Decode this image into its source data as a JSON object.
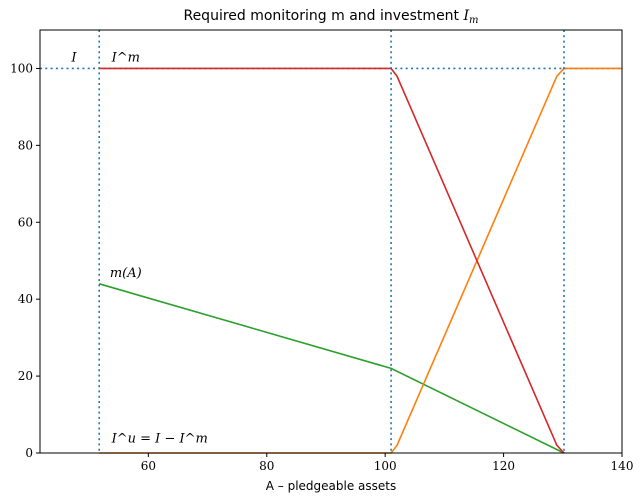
{
  "chart_data": {
    "type": "line",
    "title": "Required monitoring m and investment I_m",
    "xlabel": "A – pledgeable assets",
    "ylabel": "",
    "xlim": [
      41.7,
      140
    ],
    "ylim": [
      0,
      110
    ],
    "grid": false,
    "xticks": [
      60,
      80,
      100,
      120,
      140
    ],
    "yticks": [
      0,
      20,
      40,
      60,
      80,
      100
    ],
    "series": [
      {
        "color": "#2ca02c",
        "x": [
          51.7,
          101,
          130.2
        ],
        "y": [
          44,
          22,
          0
        ]
      },
      {
        "color": "#ff7f0e",
        "x": [
          51.7,
          101,
          102,
          129,
          130.2,
          140
        ],
        "y": [
          0,
          0,
          2,
          98,
          100,
          100
        ]
      },
      {
        "color": "#d62728",
        "x": [
          51.7,
          101,
          102,
          129,
          130.2
        ],
        "y": [
          100,
          100,
          98,
          2,
          0
        ]
      }
    ],
    "reference_lines": {
      "color": "#1f77b4",
      "vertical": [
        51.7,
        101,
        130.2
      ],
      "horizontal": [
        100
      ]
    },
    "annotations": [
      {
        "text": "I",
        "x": 47,
        "y": 101
      },
      {
        "text": "I^m",
        "x": 53.8,
        "y": 101
      },
      {
        "text": "m(A)",
        "x": 53.5,
        "y": 45
      },
      {
        "text": "I^u = I − I^m",
        "x": 53.8,
        "y": 2
      }
    ]
  }
}
